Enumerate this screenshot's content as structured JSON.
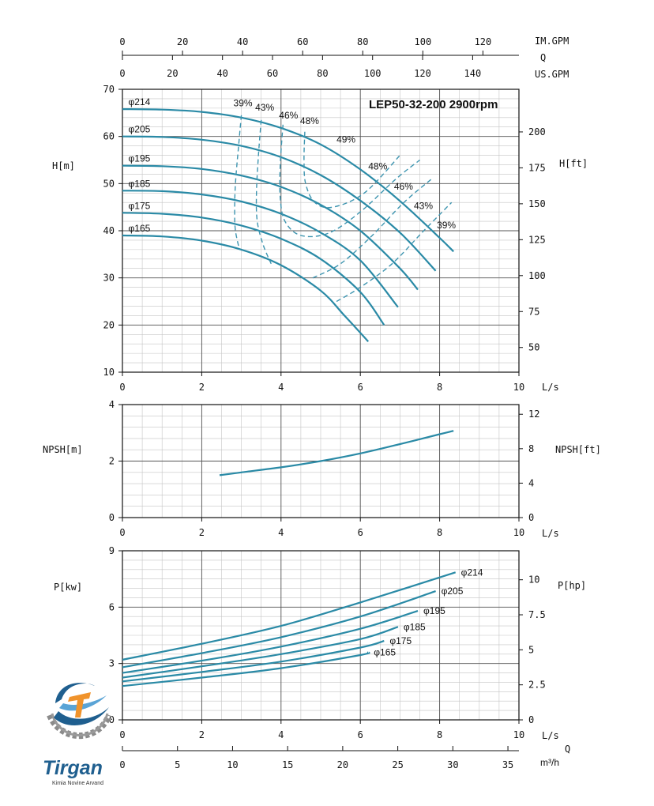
{
  "chart_data": [
    {
      "type": "line",
      "title": "LEP50-32-200 2900rpm",
      "xlabel": "L/s",
      "ylabel": "H[m]",
      "ylabel_right": "H[ft]",
      "xlim": [
        0,
        10
      ],
      "ylim": [
        10,
        70
      ],
      "x_ticks": [
        "0",
        "2",
        "4",
        "6",
        "8",
        "10"
      ],
      "y_ticks": [
        "10",
        "20",
        "30",
        "40",
        "50",
        "60",
        "70"
      ],
      "y_right_ticks": [
        "50",
        "75",
        "100",
        "125",
        "150",
        "175",
        "200"
      ],
      "top_axis_imgpm": {
        "label": "IM.GPM",
        "ticks": [
          "0",
          "20",
          "40",
          "60",
          "80",
          "100",
          "120"
        ]
      },
      "top_axis_usgpm": {
        "label": "US.GPM",
        "ticks": [
          "0",
          "20",
          "40",
          "60",
          "80",
          "100",
          "120",
          "140"
        ]
      },
      "top_axis_q_label": "Q",
      "grid": true,
      "series": [
        {
          "name": "φ214",
          "x": [
            0,
            1,
            2,
            3,
            4,
            5,
            6,
            7,
            8,
            8.35
          ],
          "y": [
            65.8,
            65.7,
            65.2,
            64.0,
            61.8,
            58.3,
            53.0,
            46.3,
            38.5,
            35.6
          ]
        },
        {
          "name": "φ205",
          "x": [
            0,
            1,
            2,
            3,
            4,
            5,
            6,
            7,
            7.9
          ],
          "y": [
            60.0,
            59.9,
            59.3,
            58.0,
            55.6,
            51.8,
            46.4,
            39.6,
            31.5
          ]
        },
        {
          "name": "φ195",
          "x": [
            0,
            1,
            2,
            3,
            4,
            5,
            6,
            7,
            7.45
          ],
          "y": [
            53.8,
            53.7,
            53.1,
            51.7,
            49.3,
            45.5,
            40.0,
            32.0,
            27.5
          ]
        },
        {
          "name": "φ185",
          "x": [
            0,
            1,
            2,
            3,
            4,
            5,
            6,
            6.95
          ],
          "y": [
            48.5,
            48.4,
            47.7,
            46.2,
            43.6,
            39.6,
            33.7,
            23.8
          ]
        },
        {
          "name": "φ175",
          "x": [
            0,
            1,
            2,
            3,
            4,
            5,
            6,
            6.6
          ],
          "y": [
            43.8,
            43.6,
            42.8,
            41.1,
            38.3,
            34.0,
            27.0,
            20.0
          ]
        },
        {
          "name": "φ165",
          "x": [
            0,
            1,
            2,
            3,
            4,
            5,
            5.6,
            6.2
          ],
          "y": [
            39.0,
            38.8,
            37.9,
            36.0,
            32.7,
            27.3,
            22.0,
            16.5
          ]
        }
      ],
      "efficiency_curves": [
        {
          "label": "39%",
          "x": [
            3.0,
            2.93,
            2.85,
            2.83,
            2.85,
            2.95
          ],
          "y": [
            64.5,
            58,
            50,
            44,
            40,
            36
          ]
        },
        {
          "label": "43%",
          "x": [
            3.5,
            3.43,
            3.38,
            3.4,
            3.55,
            3.75
          ],
          "y": [
            63.5,
            56,
            48,
            42,
            37,
            33
          ]
        },
        {
          "label": "46%",
          "x": [
            4.05,
            3.98,
            3.98,
            4.1,
            4.5,
            5.2,
            6.0,
            6.9,
            7.5
          ],
          "y": [
            62.5,
            54,
            47,
            42,
            39,
            39.5,
            44,
            51,
            55
          ]
        },
        {
          "label": "48%",
          "x": [
            4.6,
            4.58,
            4.62,
            4.85,
            5.3,
            6.1,
            7.0
          ],
          "y": [
            61,
            55,
            50,
            46,
            45,
            48,
            56
          ]
        },
        {
          "label": "43%",
          "x": [
            4.8,
            5.5,
            6.3,
            7.1,
            7.8
          ],
          "y": [
            30,
            33,
            39,
            46,
            51
          ]
        },
        {
          "label": "39%",
          "x": [
            5.4,
            6.0,
            6.8,
            7.6,
            8.3
          ],
          "y": [
            25,
            28,
            33,
            40,
            46
          ]
        }
      ],
      "annotations": [
        "49%"
      ]
    },
    {
      "type": "line",
      "xlabel": "L/s",
      "ylabel": "NPSH[m]",
      "ylabel_right": "NPSH[ft]",
      "xlim": [
        0,
        10
      ],
      "ylim": [
        0,
        4
      ],
      "x_ticks": [
        "0",
        "2",
        "4",
        "6",
        "8",
        "10"
      ],
      "y_ticks": [
        "0",
        "2",
        "4"
      ],
      "y_right_ticks": [
        "0",
        "4",
        "8",
        "12"
      ],
      "grid": true,
      "series": [
        {
          "name": "",
          "x": [
            2.45,
            3.0,
            4.0,
            5.0,
            6.0,
            7.0,
            8.0,
            8.35
          ],
          "y": [
            1.5,
            1.6,
            1.78,
            2.0,
            2.27,
            2.6,
            2.95,
            3.07
          ]
        }
      ]
    },
    {
      "type": "line",
      "xlabel": "L/s",
      "ylabel": "P[kw]",
      "ylabel_right": "P[hp]",
      "xlim": [
        0,
        10
      ],
      "ylim": [
        0,
        9
      ],
      "x_ticks": [
        "0",
        "2",
        "4",
        "6",
        "8",
        "10"
      ],
      "y_ticks": [
        "0",
        "3",
        "6",
        "9"
      ],
      "y_right_ticks": [
        "0",
        "2.5",
        "5",
        "7.5",
        "10"
      ],
      "bottom_axis_m3h": {
        "label": "m³/h",
        "q_label": "Q",
        "ticks": [
          "0",
          "5",
          "10",
          "15",
          "20",
          "25",
          "30",
          "35"
        ]
      },
      "grid": true,
      "series": [
        {
          "name": "φ214",
          "x": [
            0,
            2,
            4,
            6,
            8.4
          ],
          "y": [
            3.2,
            4.05,
            5.0,
            6.25,
            7.85
          ]
        },
        {
          "name": "φ205",
          "x": [
            0,
            2,
            4,
            6,
            7.9
          ],
          "y": [
            2.8,
            3.55,
            4.4,
            5.5,
            6.85
          ]
        },
        {
          "name": "φ195",
          "x": [
            0,
            2,
            4,
            6,
            7.45
          ],
          "y": [
            2.5,
            3.15,
            3.9,
            4.85,
            5.8
          ]
        },
        {
          "name": "φ185",
          "x": [
            0,
            2,
            4,
            6,
            6.95
          ],
          "y": [
            2.25,
            2.85,
            3.5,
            4.3,
            4.95
          ]
        },
        {
          "name": "φ175",
          "x": [
            0,
            2,
            4,
            6,
            6.6
          ],
          "y": [
            2.05,
            2.55,
            3.1,
            3.85,
            4.2
          ]
        },
        {
          "name": "φ165",
          "x": [
            0,
            2,
            4,
            6,
            6.2
          ],
          "y": [
            1.8,
            2.25,
            2.75,
            3.45,
            3.6
          ]
        }
      ]
    }
  ],
  "logo": {
    "name": "Tirgan",
    "tagline": "Kimia Novine Arvand"
  },
  "colors": {
    "curve": "#2a8aa6",
    "grid": "#9a9a9a",
    "axis": "#111111",
    "logo_blue": "#1f5f8f",
    "logo_orange": "#f0932b"
  }
}
